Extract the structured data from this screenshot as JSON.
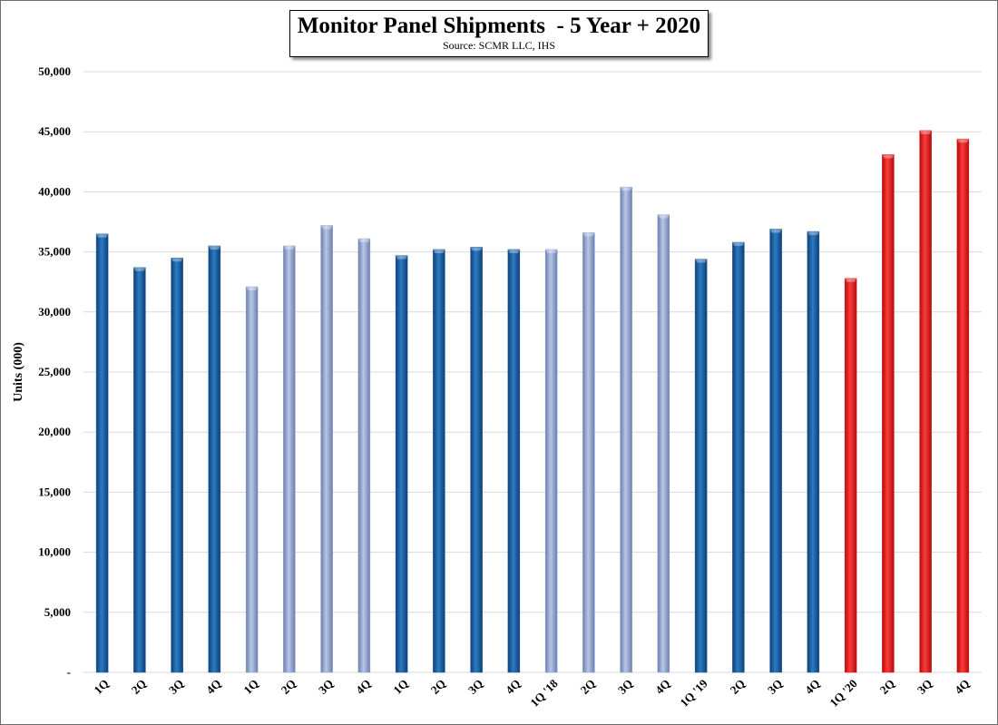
{
  "chart_data": {
    "type": "bar",
    "title": "Monitor Panel Shipments  - 5 Year + 2020",
    "subtitle": "Source: SCMR LLC, IHS",
    "ylabel": "Units (000)",
    "xlabel": "",
    "ylim": [
      0,
      50000
    ],
    "yticks": [
      0,
      5000,
      10000,
      15000,
      20000,
      25000,
      30000,
      35000,
      40000,
      45000,
      50000
    ],
    "ytick_labels": [
      "-",
      "5,000",
      "10,000",
      "15,000",
      "20,000",
      "25,000",
      "30,000",
      "35,000",
      "40,000",
      "45,000",
      "50,000"
    ],
    "grid": true,
    "legend": "none",
    "colors": {
      "dark_blue": "#1f5f9f",
      "light_blue": "#8fa3cc",
      "red": "#e31b1b"
    },
    "categories": [
      "1Q",
      "2Q",
      "3Q",
      "4Q",
      "1Q",
      "2Q",
      "3Q",
      "4Q",
      "1Q",
      "2Q",
      "3Q",
      "4Q",
      "1Q '18",
      "2Q",
      "3Q",
      "4Q",
      "1Q '19",
      "2Q",
      "3Q",
      "4Q",
      "1Q '20",
      "2Q",
      "3Q",
      "4Q"
    ],
    "values": [
      36500,
      33700,
      34500,
      35500,
      32100,
      35500,
      37200,
      36100,
      34700,
      35200,
      35400,
      35200,
      35200,
      36600,
      40400,
      38100,
      34400,
      35800,
      36900,
      36700,
      32800,
      43100,
      45100,
      44400
    ],
    "bar_colors": [
      "dark_blue",
      "dark_blue",
      "dark_blue",
      "dark_blue",
      "light_blue",
      "light_blue",
      "light_blue",
      "light_blue",
      "dark_blue",
      "dark_blue",
      "dark_blue",
      "dark_blue",
      "light_blue",
      "light_blue",
      "light_blue",
      "light_blue",
      "dark_blue",
      "dark_blue",
      "dark_blue",
      "dark_blue",
      "red",
      "red",
      "red",
      "red"
    ]
  }
}
